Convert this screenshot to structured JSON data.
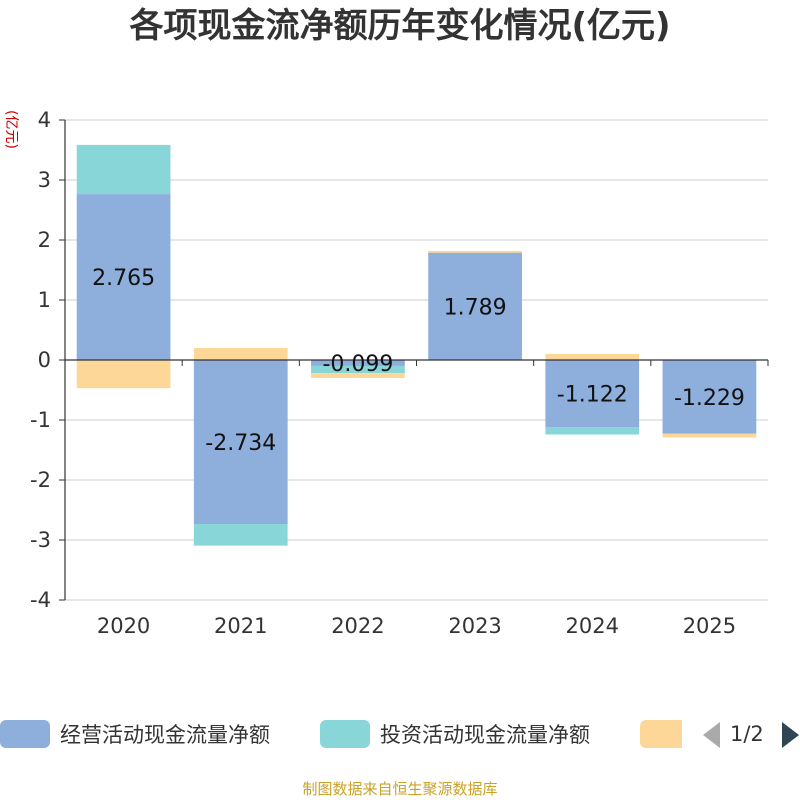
{
  "chart_data": {
    "type": "bar",
    "stacked": true,
    "title": "各项现金流净额历年变化情况(亿元)",
    "ylabel": "(亿元)",
    "xlabel": "",
    "ylim": [
      -4,
      4
    ],
    "yticks": [
      4,
      3,
      2,
      1,
      0,
      -1,
      -2,
      -3,
      -4
    ],
    "categories": [
      "2020",
      "2021",
      "2022",
      "2023",
      "2024",
      "2025"
    ],
    "series": [
      {
        "name": "经营活动现金流量净额",
        "color": "#8eaedc",
        "values": [
          2.765,
          -2.734,
          -0.099,
          1.789,
          -1.122,
          -1.229
        ],
        "labels": [
          "2.765",
          "-2.734",
          "-0.099",
          "1.789",
          "-1.122",
          "-1.229"
        ]
      },
      {
        "name": "投资活动现金流量净额",
        "color": "#88d6d8",
        "values": [
          0.82,
          -0.36,
          -0.12,
          0.0,
          -0.12,
          0.0
        ]
      },
      {
        "name": "",
        "color": "#fdd797",
        "values": [
          -0.47,
          0.2,
          -0.08,
          0.03,
          0.1,
          -0.06
        ]
      }
    ],
    "legend": {
      "position": "bottom",
      "page": "1/2"
    },
    "grid": true
  },
  "footer": {
    "source": "制图数据来自恒生聚源数据库"
  }
}
